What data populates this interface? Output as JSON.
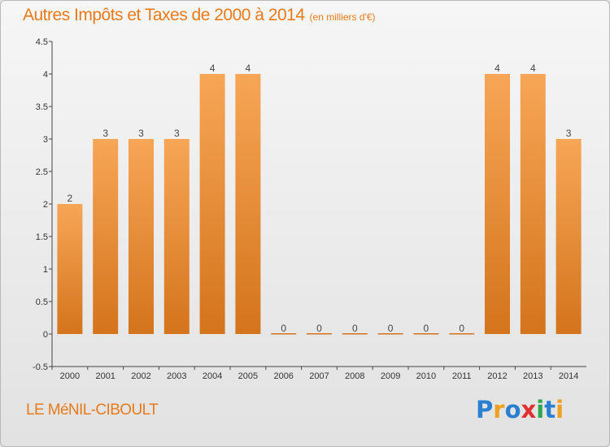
{
  "header": {
    "title": "Autres Impôts et Taxes de 2000 à 2014",
    "subtitle": "(en milliers d'€)"
  },
  "footer": {
    "commune": "LE MéNIL-CIBOULT",
    "brand": "Proxiti",
    "brand_letters": [
      {
        "char": "P",
        "color": "#2a7fd0"
      },
      {
        "char": "r",
        "color": "#f0a020"
      },
      {
        "char": "o",
        "color": "#2a7fd0"
      },
      {
        "char": "x",
        "color": "#e03030"
      },
      {
        "char": "i",
        "color": "#2ea84a"
      },
      {
        "char": "t",
        "color": "#2a7fd0"
      },
      {
        "char": "i",
        "color": "#f0a020"
      }
    ]
  },
  "chart_data": {
    "type": "bar",
    "categories": [
      "2000",
      "2001",
      "2002",
      "2003",
      "2004",
      "2005",
      "2006",
      "2007",
      "2008",
      "2009",
      "2010",
      "2011",
      "2012",
      "2013",
      "2014"
    ],
    "values": [
      2,
      3,
      3,
      3,
      4,
      4,
      0,
      0,
      0,
      0,
      0,
      0,
      4,
      4,
      3
    ],
    "data_labels": [
      "2",
      "3",
      "3",
      "3",
      "4",
      "4",
      "0",
      "0",
      "0",
      "0",
      "0",
      "0",
      "4",
      "4",
      "3"
    ],
    "ylim": [
      -0.5,
      4.5
    ],
    "yticks": [
      -0.5,
      0,
      0.5,
      1,
      1.5,
      2,
      2.5,
      3,
      3.5,
      4,
      4.5
    ],
    "ytick_labels": [
      "-0.5",
      "0",
      "0.5",
      "1",
      "1.5",
      "2",
      "2.5",
      "3",
      "3.5",
      "4",
      "4.5"
    ],
    "grid": false,
    "bar_color_top": "#f7a656",
    "bar_color_bottom": "#d4741c"
  }
}
